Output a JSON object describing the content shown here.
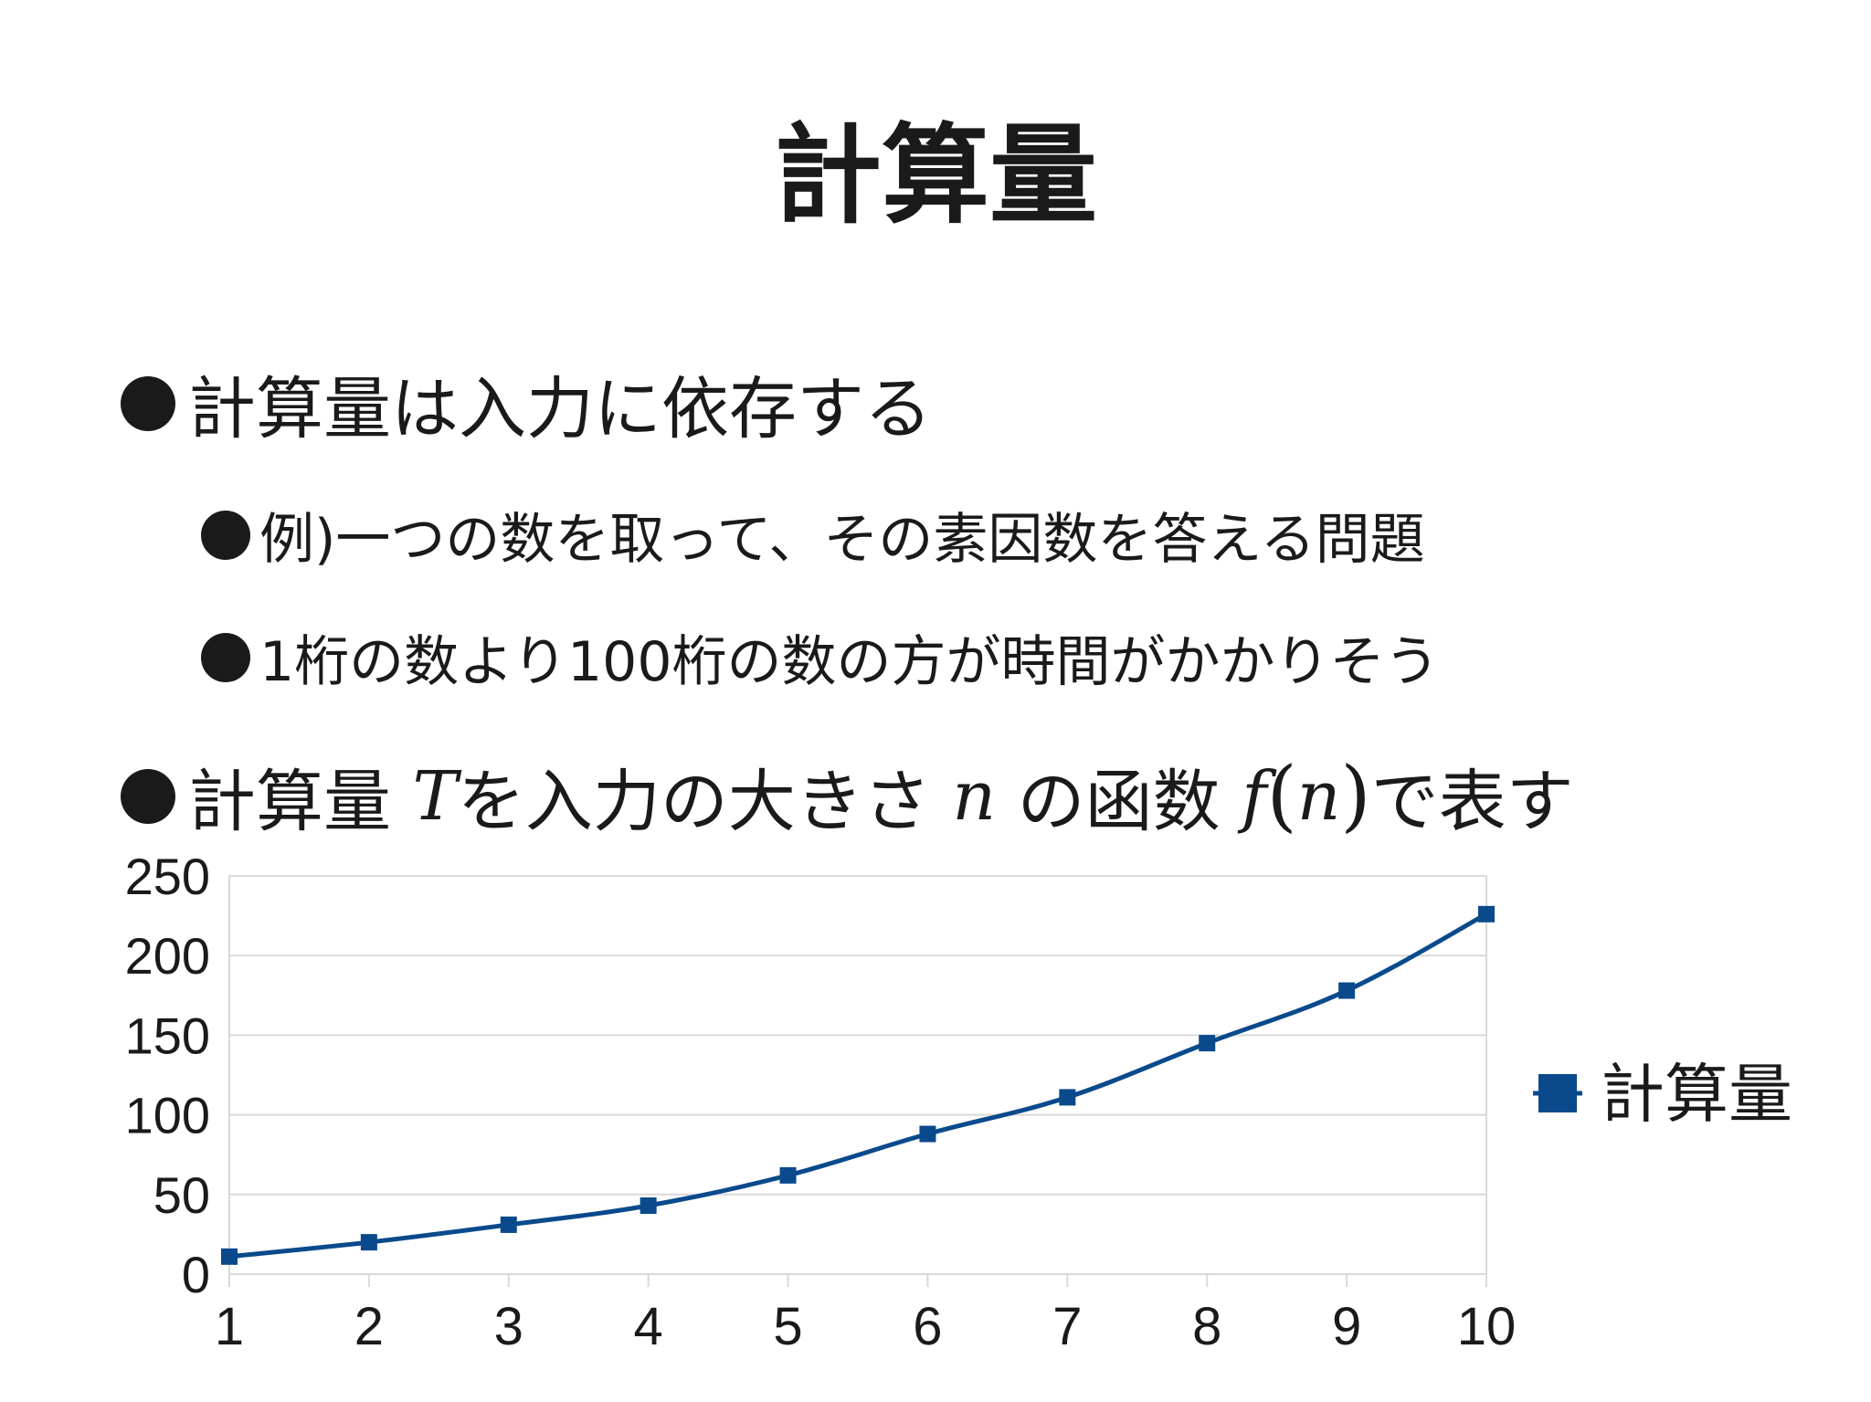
{
  "slide": {
    "title": "計算量",
    "bullets": [
      {
        "text": "計算量は入力に依存する"
      },
      {
        "text": "例)一つの数を取って、その素因数を答える問題"
      },
      {
        "text": "1桁の数より100桁の数の方が時間がかかりそう"
      }
    ],
    "formula_bullet": {
      "part1": "計算量 ",
      "var_T": "T",
      "part2": "を入力の大きさ ",
      "var_n": "n",
      "part3": " の函数 ",
      "var_f": "f",
      "paren_open": "(",
      "var_n2": "n",
      "paren_close": ")",
      "part4": "で表す"
    }
  },
  "colors": {
    "series": "#0a4a8c",
    "grid": "#d9d9d9",
    "text": "#1a1a1a"
  },
  "chart_data": {
    "type": "line",
    "x": [
      1,
      2,
      3,
      4,
      5,
      6,
      7,
      8,
      9,
      10
    ],
    "series": [
      {
        "name": "計算量",
        "values": [
          11,
          20,
          31,
          43,
          62,
          88,
          111,
          145,
          178,
          226
        ],
        "marker": "square"
      }
    ],
    "y_ticks": [
      0,
      50,
      100,
      150,
      200,
      250
    ],
    "ylim": [
      0,
      250
    ],
    "xlabel": "",
    "ylabel": "",
    "grid": "horizontal",
    "legend_position": "right"
  }
}
